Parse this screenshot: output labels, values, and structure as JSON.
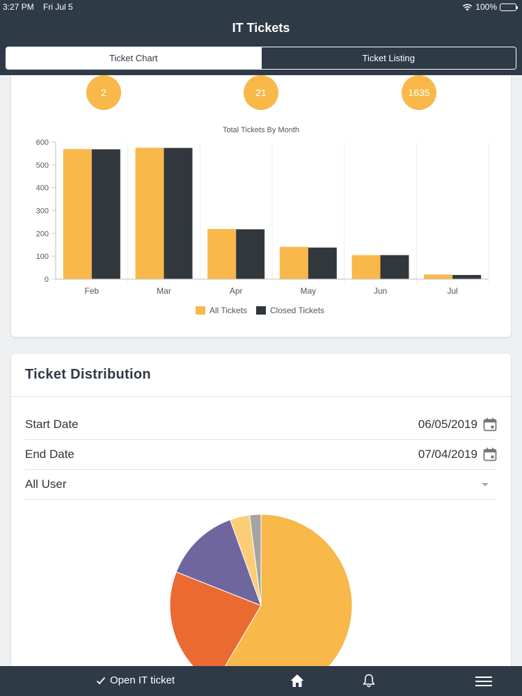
{
  "status_bar": {
    "time": "3:27 PM",
    "date": "Fri Jul 5",
    "battery": "100%"
  },
  "app": {
    "title": "IT Tickets"
  },
  "tabs": [
    {
      "label": "Ticket Chart",
      "active": true
    },
    {
      "label": "Ticket Listing",
      "active": false
    }
  ],
  "summary_badges": [
    {
      "value": "2"
    },
    {
      "value": "21"
    },
    {
      "value": "1635"
    }
  ],
  "chart_data": {
    "type": "bar",
    "title": "Total Tickets By Month",
    "categories": [
      "Feb",
      "Mar",
      "Apr",
      "May",
      "Jun",
      "Jul"
    ],
    "series": [
      {
        "name": "All Tickets",
        "color": "#f8b84a",
        "values": [
          569,
          575,
          219,
          141,
          105,
          20
        ]
      },
      {
        "name": "Closed Tickets",
        "color": "#32373d",
        "values": [
          568,
          574,
          218,
          138,
          105,
          18
        ]
      }
    ],
    "ylim": [
      0,
      600
    ],
    "yticks": [
      "0",
      "100",
      "200",
      "300",
      "400",
      "500",
      "600"
    ],
    "xlabel": "",
    "ylabel": "",
    "legend": "bottom",
    "grid": "vertical"
  },
  "distribution": {
    "title": "Ticket Distribution",
    "start_label": "Start Date",
    "start_value": "06/05/2019",
    "end_label": "End Date",
    "end_value": "07/04/2019",
    "user_select": "All User",
    "pie": {
      "type": "pie",
      "slices": [
        {
          "value": 58.5,
          "color": "#f8b84a"
        },
        {
          "value": 22.5,
          "color": "#ea6a32"
        },
        {
          "value": 13.5,
          "color": "#6f659f"
        },
        {
          "value": 3.5,
          "color": "#fbcd77"
        },
        {
          "value": 2.0,
          "color": "#a4a4a4"
        }
      ]
    }
  },
  "bottom_bar": {
    "open_ticket": "Open IT ticket"
  }
}
